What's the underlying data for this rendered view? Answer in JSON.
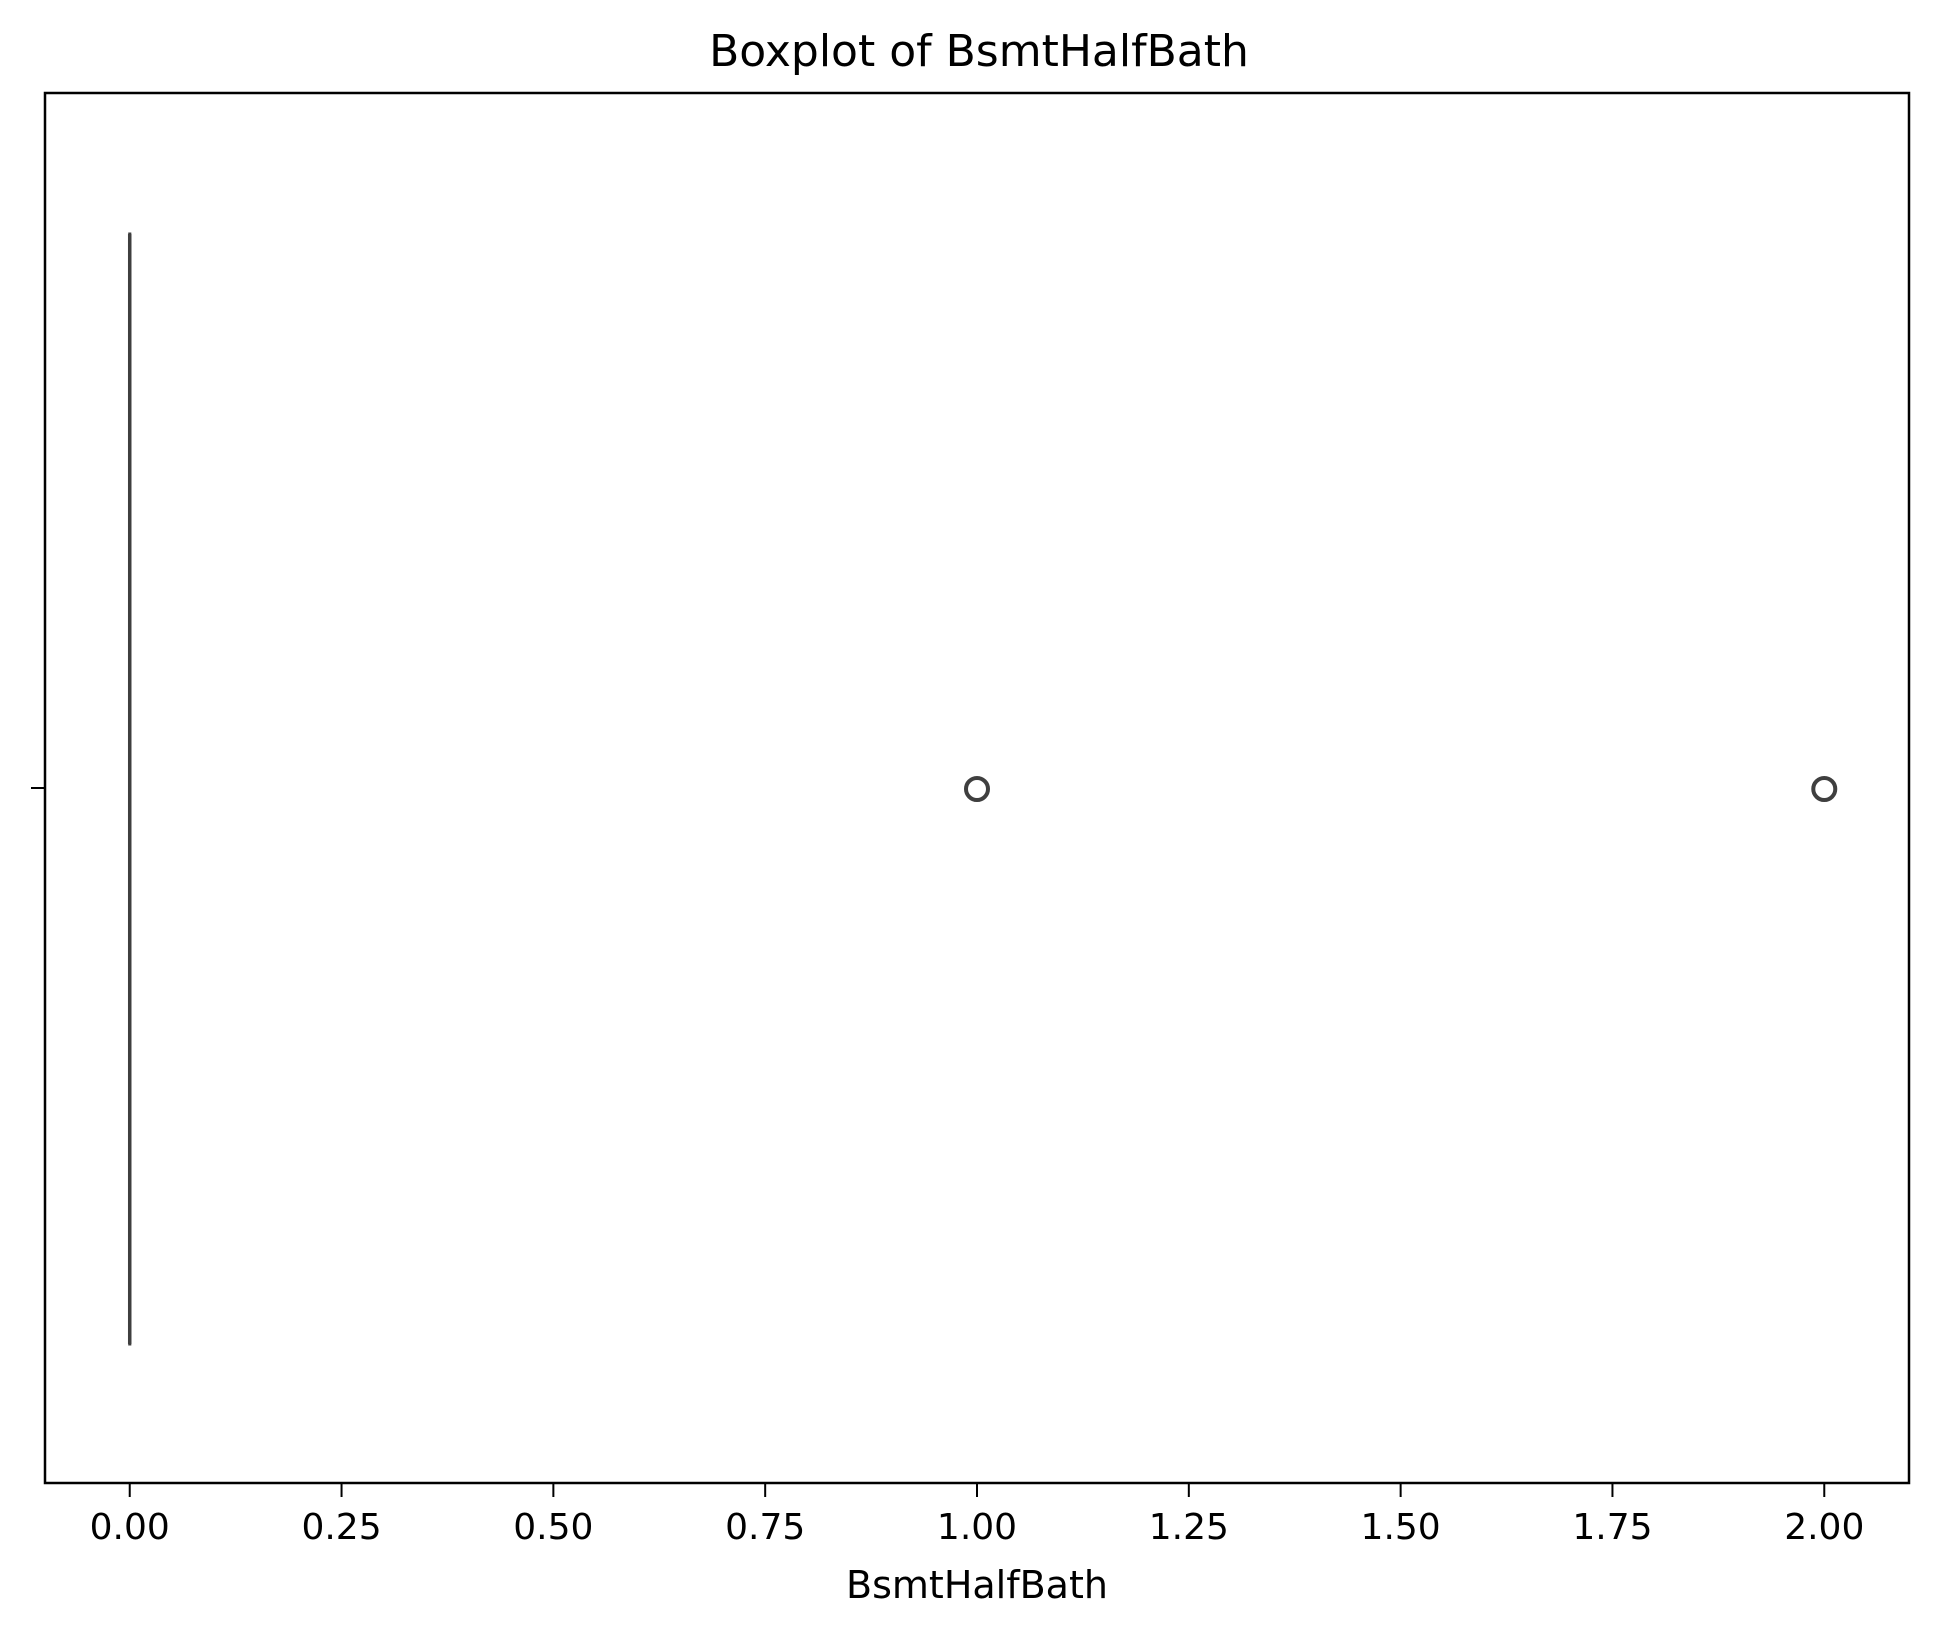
{
  "chart_data": {
    "type": "boxplot",
    "title": "Boxplot of BsmtHalfBath",
    "xlabel": "BsmtHalfBath",
    "ylabel": "",
    "xlim": [
      -0.1,
      2.1
    ],
    "x_ticks": [
      0.0,
      0.25,
      0.5,
      0.75,
      1.0,
      1.25,
      1.5,
      1.75,
      2.0
    ],
    "x_tick_labels": [
      "0.00",
      "0.25",
      "0.50",
      "0.75",
      "1.00",
      "1.25",
      "1.50",
      "1.75",
      "2.00"
    ],
    "orientation": "horizontal",
    "grid": false,
    "legend": false,
    "box": {
      "min": 0.0,
      "q1": 0.0,
      "median": 0.0,
      "q3": 0.0,
      "max": 0.0,
      "outliers": [
        1.0,
        2.0
      ]
    },
    "colors": {
      "box_line": "#3f3f3f",
      "axes": "#000000",
      "background": "#ffffff"
    }
  }
}
